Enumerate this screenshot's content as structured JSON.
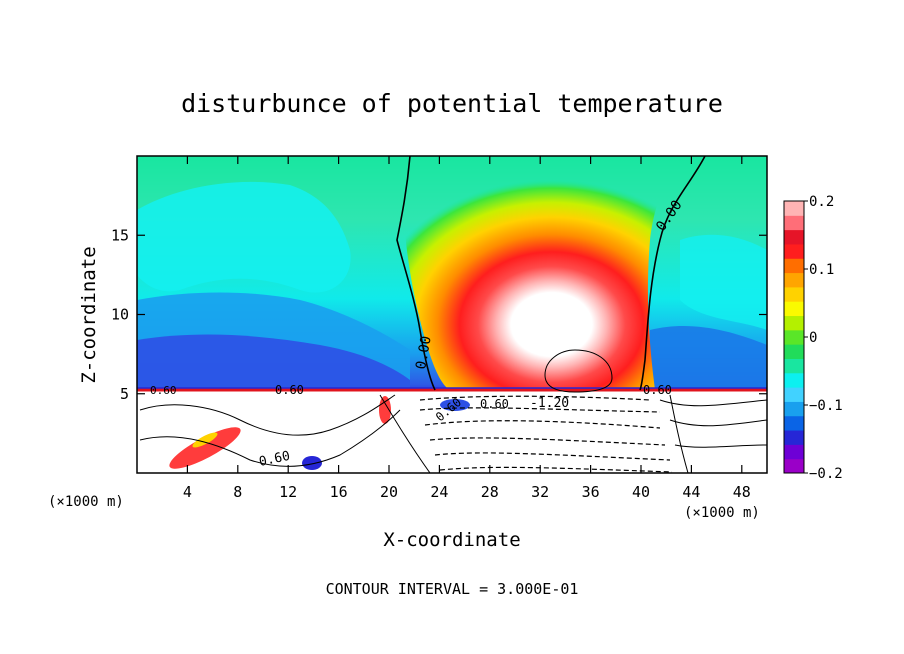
{
  "chart_data": {
    "type": "heatmap",
    "title": "disturbunce of potential temperature",
    "xlabel": "X-coordinate",
    "ylabel": "Z-coordinate",
    "x_unit_left": "(×1000 m)",
    "x_unit_right": "(×1000 m)",
    "footer": "CONTOUR INTERVAL = 3.000E-01",
    "xlim": [
      0,
      50
    ],
    "ylim": [
      0,
      20
    ],
    "x_ticks": [
      4,
      8,
      12,
      16,
      20,
      24,
      28,
      32,
      36,
      40,
      44,
      48
    ],
    "y_ticks": [
      5,
      10,
      15
    ],
    "colorbar": {
      "range": [
        -0.2,
        0.2
      ],
      "tick_values": [
        0.2,
        0.1,
        0,
        -0.1,
        -0.2
      ],
      "tick_labels": [
        "0.2",
        "0.1",
        "0",
        "−0.1",
        "−0.2"
      ],
      "colors": [
        "#9a00c8",
        "#6e00d6",
        "#2626d6",
        "#0a64e6",
        "#19a0ee",
        "#41d2ff",
        "#0cf0f0",
        "#19e6a0",
        "#21dc5a",
        "#5ae628",
        "#b4f000",
        "#fafa00",
        "#ffd200",
        "#ffa500",
        "#ff6e00",
        "#ff1e1e",
        "#e61428",
        "#ff6e78",
        "#ffb4b4"
      ]
    },
    "contour_labels": [
      "0.00",
      "0.00",
      "0.60",
      "0.60",
      "0.60",
      "0.60",
      "0.60",
      "0.60",
      "-1.20"
    ],
    "background_color": "#ffffff"
  }
}
